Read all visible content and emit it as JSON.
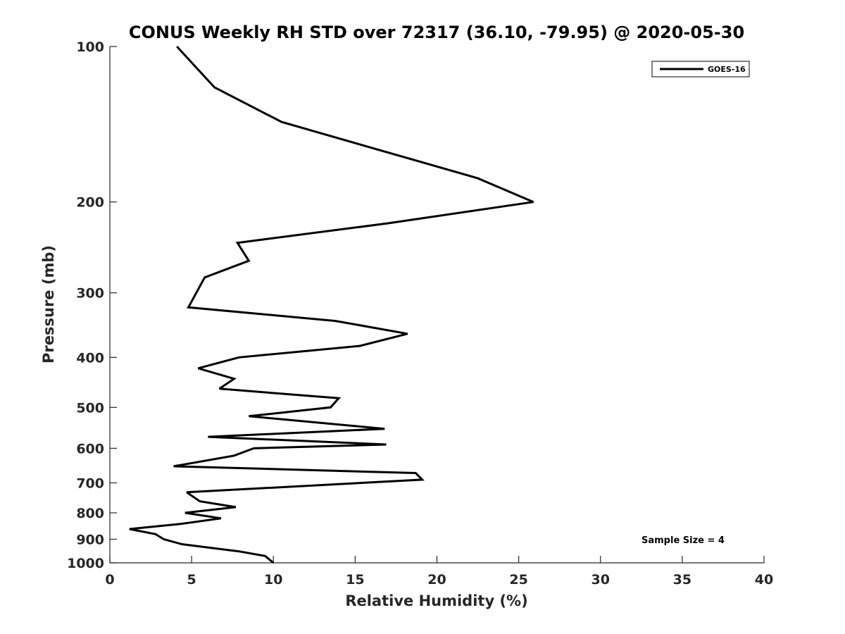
{
  "chart_data": {
    "type": "line",
    "title": "CONUS Weekly RH STD over 72317 (36.10, -79.95) @ 2020-05-30",
    "xlabel": "Relative Humidity (%)",
    "ylabel": "Pressure (mb)",
    "xlim": [
      0,
      40
    ],
    "ylim": [
      1000,
      100
    ],
    "yscale": "log",
    "xticks": [
      0,
      5,
      10,
      15,
      20,
      25,
      30,
      35,
      40
    ],
    "yticks": [
      100,
      200,
      300,
      400,
      500,
      600,
      700,
      800,
      900,
      1000
    ],
    "grid": false,
    "legend_position": "top-right",
    "annotation": "Sample Size = 4",
    "series": [
      {
        "name": "GOES-16",
        "color": "#000000",
        "x": [
          4.1,
          6.4,
          10.5,
          22.5,
          25.9,
          17.0,
          7.8,
          8.5,
          5.8,
          4.8,
          13.8,
          18.2,
          15.3,
          7.9,
          5.4,
          7.6,
          6.7,
          14.0,
          13.5,
          8.5,
          16.8,
          6.0,
          16.9,
          8.8,
          7.6,
          3.9,
          18.7,
          19.1,
          4.7,
          5.5,
          7.7,
          4.6,
          6.8,
          4.4,
          1.2,
          2.8,
          3.3,
          4.4,
          7.9,
          9.5,
          10.0
        ],
        "y": [
          100,
          120,
          140,
          180,
          200,
          220,
          240,
          260,
          280,
          320,
          340,
          360,
          380,
          400,
          420,
          440,
          460,
          480,
          500,
          520,
          550,
          570,
          590,
          600,
          620,
          650,
          670,
          690,
          730,
          760,
          780,
          800,
          820,
          840,
          860,
          880,
          900,
          920,
          950,
          970,
          1000
        ]
      }
    ]
  }
}
